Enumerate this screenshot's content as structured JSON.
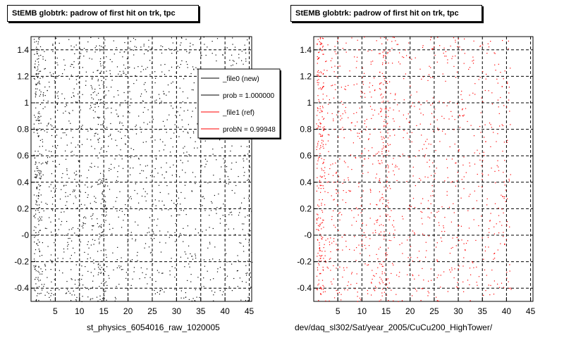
{
  "pads": [
    {
      "title": "StEMB globtrk: padrow of first hit on trk, tpc",
      "xlabel": "st_physics_6054016_raw_1020005",
      "color": "#000000"
    },
    {
      "title": "StEMB globtrk: padrow of first hit on trk, tpc",
      "xlabel": "dev/daq_sl302/Sat/year_2005/CuCu200_HighTower/",
      "color": "#ff0000"
    }
  ],
  "corner_stamp": "",
  "legend": {
    "entries": [
      {
        "label": "_file0 (new)",
        "color": "#000000"
      },
      {
        "label": "prob = 1.000000",
        "color": "#000000"
      },
      {
        "label": "_file1 (ref)",
        "color": "#ff0000"
      },
      {
        "label": "probN = 0.99948",
        "color": "#ff0000"
      }
    ]
  },
  "chart_data": [
    {
      "type": "scatter",
      "title": "StEMB globtrk: padrow of first hit on trk, tpc",
      "xlabel": "st_physics_6054016_raw_1020005",
      "ylabel": "",
      "xlim": [
        0,
        45.5
      ],
      "ylim": [
        -0.5,
        1.5
      ],
      "x_ticks": [
        "5",
        "10",
        "15",
        "20",
        "25",
        "30",
        "35",
        "40",
        "45"
      ],
      "y_ticks": [
        "-0.4",
        "-0.2",
        "-0",
        "0.2",
        "0.4",
        "0.6",
        "0.8",
        "1",
        "1.2",
        "1.4"
      ],
      "grid": true,
      "series": [
        {
          "name": "_file0 (new)",
          "color": "#000000",
          "density_profile": {
            "x_bands": [
              [
                0.5,
                2.0,
                1.0
              ],
              [
                2.0,
                13.5,
                0.25
              ],
              [
                13.5,
                15.5,
                0.6
              ],
              [
                15.5,
                45.5,
                0.18
              ]
            ]
          }
        }
      ]
    },
    {
      "type": "scatter",
      "title": "StEMB globtrk: padrow of first hit on trk, tpc",
      "xlabel": "dev/daq_sl302/Sat/year_2005/CuCu200_HighTower/",
      "ylabel": "",
      "xlim": [
        0,
        45.5
      ],
      "ylim": [
        -0.5,
        1.5
      ],
      "x_ticks": [
        "5",
        "10",
        "15",
        "20",
        "25",
        "30",
        "35",
        "40",
        "45"
      ],
      "y_ticks": [
        "-0.4",
        "-0.2",
        "-0",
        "0.2",
        "0.4",
        "0.6",
        "0.8",
        "1",
        "1.2",
        "1.4"
      ],
      "grid": true,
      "series": [
        {
          "name": "_file1 (ref)",
          "color": "#ff0000",
          "density_profile": {
            "x_bands": [
              [
                0.5,
                2.0,
                1.0
              ],
              [
                2.0,
                13.5,
                0.2
              ],
              [
                13.5,
                15.5,
                0.55
              ],
              [
                15.5,
                41.0,
                0.15
              ]
            ]
          }
        }
      ]
    }
  ]
}
